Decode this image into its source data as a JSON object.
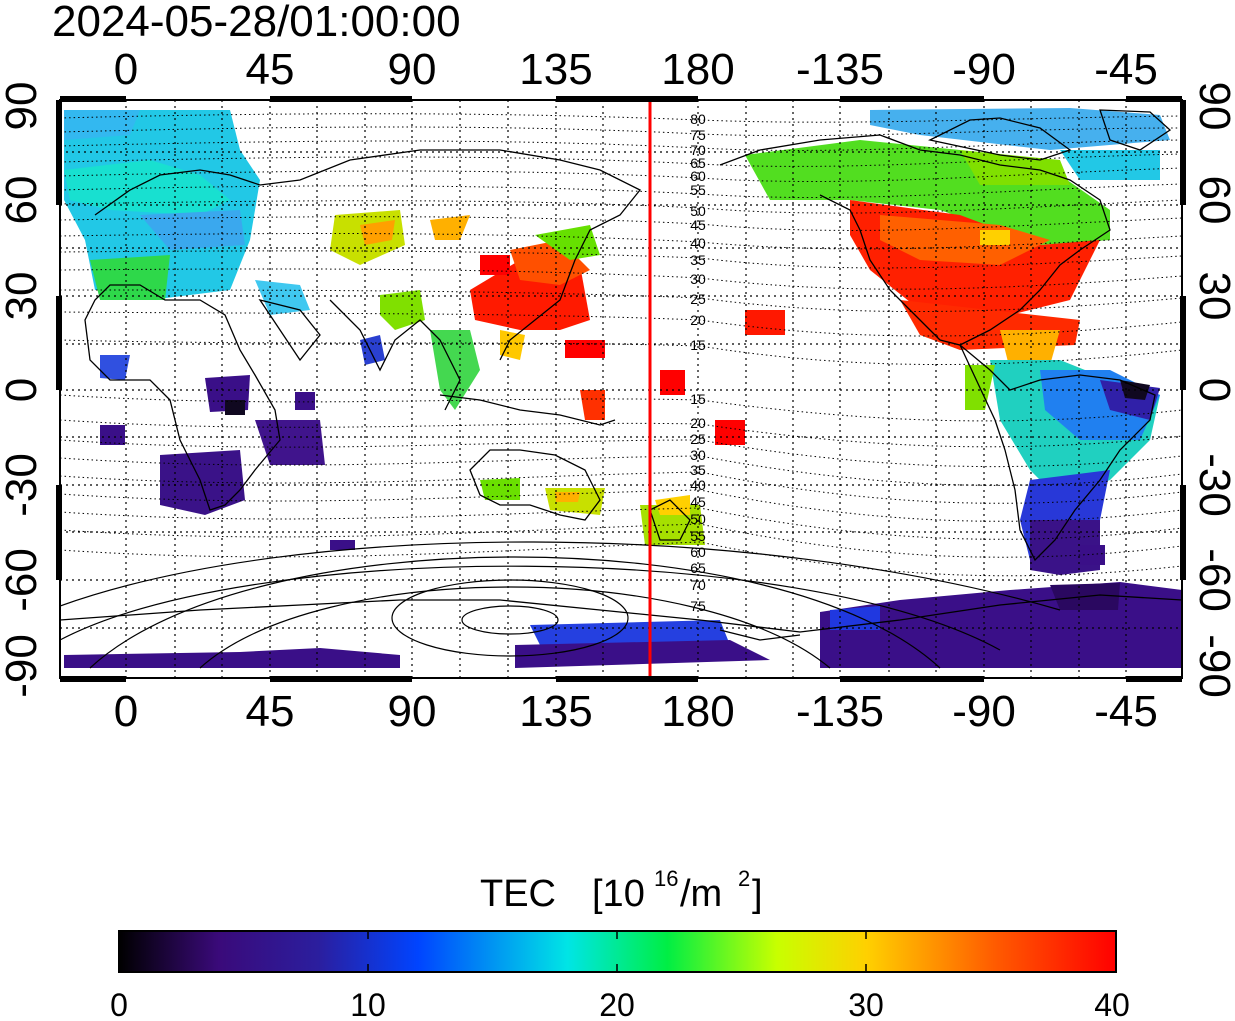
{
  "title": "2024-05-28/01:00:00",
  "map": {
    "top_lon_labels": [
      "0",
      "45",
      "90",
      "135",
      "180",
      "-135",
      "-90",
      "-45"
    ],
    "bottom_lon_labels": [
      "0",
      "45",
      "90",
      "135",
      "180",
      "-135",
      "-90",
      "-45"
    ],
    "left_lat_labels": [
      "90",
      "60",
      "30",
      "0",
      "-30",
      "-60",
      "-90"
    ],
    "right_lat_labels": [
      "90",
      "60",
      "30",
      "0",
      "-30",
      "-60",
      "-90"
    ],
    "contour_labels_north": [
      "80",
      "75",
      "70",
      "65",
      "60",
      "55",
      "50",
      "45",
      "40",
      "35",
      "30",
      "25",
      "20",
      "15"
    ],
    "contour_labels_south": [
      "15",
      "20",
      "25",
      "30",
      "35",
      "40",
      "45",
      "50",
      "55",
      "60",
      "65",
      "70",
      "75"
    ],
    "terminator_color": "#ff0000"
  },
  "colorbar": {
    "title": "TEC",
    "unit_open": "[10",
    "unit_exp": "16",
    "unit_mid": "/m",
    "unit_exp2": "2",
    "unit_close": "]",
    "tick_labels": [
      "0",
      "10",
      "20",
      "30",
      "40"
    ],
    "min": 0,
    "max": 40,
    "stops": [
      "#000000",
      "#3a0a7a",
      "#2b1e9e",
      "#0044ff",
      "#00e5e5",
      "#00ee44",
      "#c8ff00",
      "#ffd000",
      "#ff5a00",
      "#ff0000"
    ]
  }
}
